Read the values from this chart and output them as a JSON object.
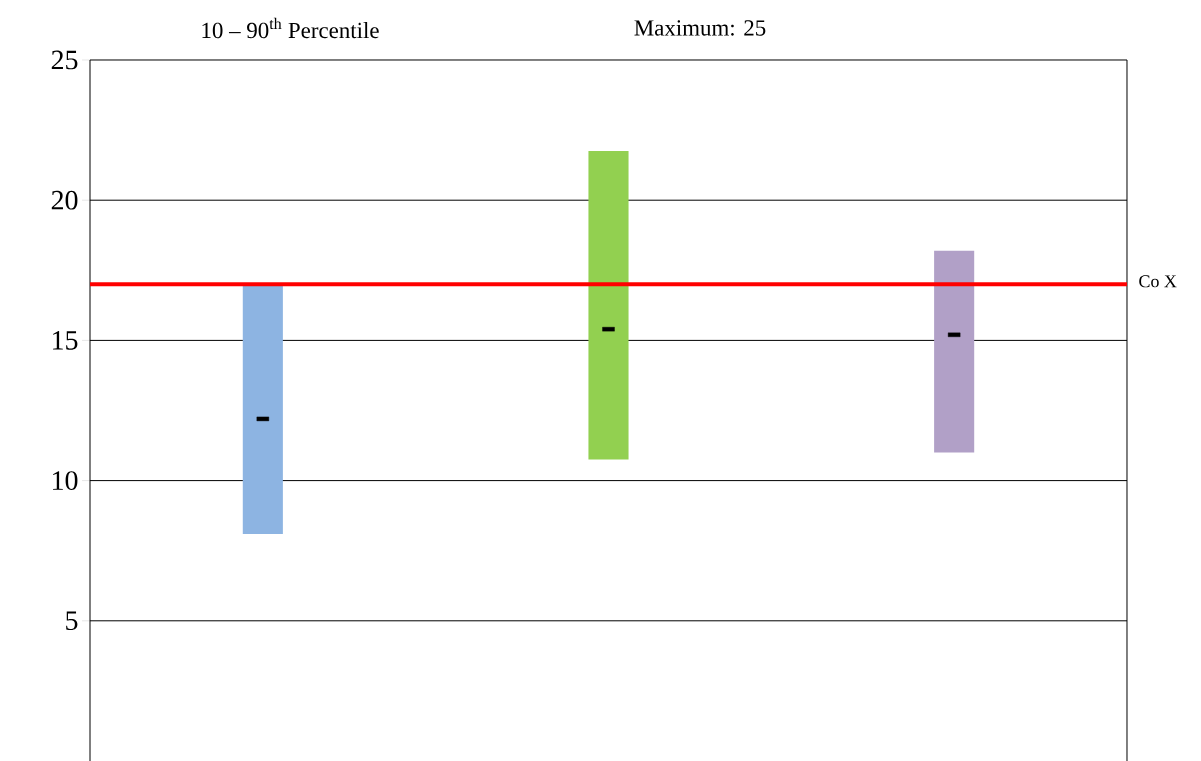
{
  "chart_data": {
    "type": "bar",
    "categories": [
      null,
      null,
      null
    ],
    "series": [
      {
        "values": [
          8.9,
          11.0,
          7.2
        ],
        "base": [
          8.1,
          10.75,
          11.0
        ],
        "colors": [
          "#8db4e2",
          "#92d050",
          "#b1a0c7"
        ]
      },
      {
        "type": "scatter",
        "color": "#000000",
        "values": [
          12.2,
          15.4,
          15.2
        ]
      }
    ],
    "ylim": [
      0,
      25
    ],
    "yticks": [
      5,
      10,
      15,
      20,
      25
    ],
    "grid": "y",
    "ref_lines": [
      {
        "axis": "y",
        "value": 17,
        "label": "Co X",
        "color": "#ff0000"
      }
    ],
    "annotations": [
      "10 – 90$^{th}$ Percentile",
      "Maximum: 25"
    ]
  }
}
